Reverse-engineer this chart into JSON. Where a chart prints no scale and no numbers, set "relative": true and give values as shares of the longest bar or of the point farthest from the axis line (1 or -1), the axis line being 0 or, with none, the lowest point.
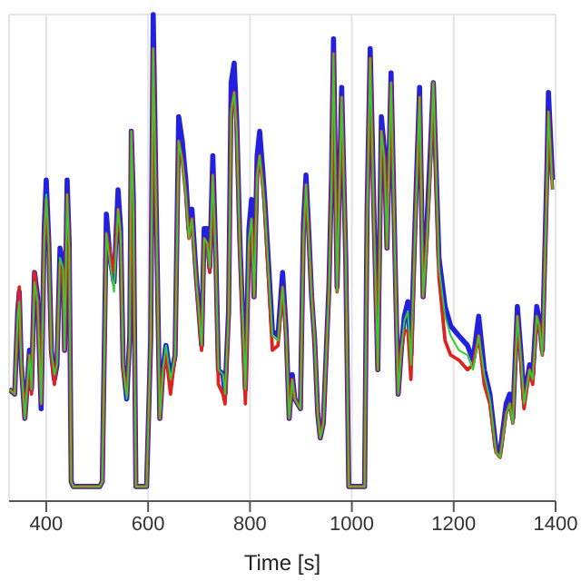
{
  "chart_data": {
    "type": "line",
    "relative": true,
    "xlabel": "Time [s]",
    "xlim": [
      327,
      1400
    ],
    "xticks": [
      400,
      600,
      800,
      1000,
      1200,
      1400
    ],
    "grid": true,
    "legend": false,
    "marker": "none",
    "line_style": "solid",
    "x": [
      327,
      338,
      344,
      347,
      351,
      358,
      364,
      367,
      371,
      377,
      383,
      390,
      396,
      400,
      405,
      410,
      416,
      421,
      427,
      433,
      436,
      441,
      445,
      449,
      453,
      505,
      510,
      518,
      525,
      533,
      541,
      546,
      551,
      558,
      564,
      567,
      571,
      576,
      597,
      605,
      610,
      616,
      623,
      629,
      635,
      644,
      653,
      660,
      667,
      674,
      680,
      686,
      694,
      705,
      710,
      716,
      721,
      727,
      733,
      738,
      747,
      751,
      758,
      763,
      769,
      774,
      780,
      791,
      798,
      803,
      808,
      814,
      819,
      825,
      829,
      844,
      855,
      864,
      871,
      877,
      883,
      888,
      899,
      905,
      910,
      916,
      921,
      927,
      933,
      938,
      944,
      955,
      960,
      964,
      971,
      980,
      988,
      994,
      1025,
      1030,
      1036,
      1044,
      1051,
      1058,
      1064,
      1069,
      1077,
      1086,
      1091,
      1097,
      1103,
      1110,
      1116,
      1124,
      1133,
      1140,
      1147,
      1155,
      1160,
      1171,
      1183,
      1194,
      1210,
      1227,
      1238,
      1249,
      1260,
      1271,
      1283,
      1291,
      1303,
      1310,
      1316,
      1325,
      1333,
      1338,
      1349,
      1355,
      1363,
      1368,
      1374,
      1383,
      1386,
      1394
    ],
    "series": [
      {
        "color": "#2222dd",
        "values": [
          0.23,
          0.22,
          0.39,
          0.43,
          0.28,
          0.17,
          0.26,
          0.31,
          0.23,
          0.47,
          0.42,
          0.19,
          0.56,
          0.66,
          0.53,
          0.31,
          0.25,
          0.28,
          0.52,
          0.49,
          0.31,
          0.66,
          0.53,
          0.04,
          0.03,
          0.03,
          0.04,
          0.59,
          0.5,
          0.45,
          0.64,
          0.56,
          0.28,
          0.21,
          0.34,
          0.76,
          0.62,
          0.03,
          0.03,
          0.33,
          1.0,
          0.6,
          0.17,
          0.27,
          0.32,
          0.25,
          0.3,
          0.79,
          0.74,
          0.66,
          0.56,
          0.6,
          0.47,
          0.32,
          0.56,
          0.56,
          0.48,
          0.71,
          0.5,
          0.27,
          0.26,
          0.22,
          0.39,
          0.86,
          0.9,
          0.78,
          0.54,
          0.23,
          0.56,
          0.62,
          0.42,
          0.71,
          0.76,
          0.68,
          0.62,
          0.35,
          0.34,
          0.47,
          0.35,
          0.17,
          0.26,
          0.21,
          0.19,
          0.57,
          0.67,
          0.54,
          0.42,
          0.33,
          0.18,
          0.13,
          0.16,
          0.44,
          0.66,
          0.95,
          0.44,
          0.85,
          0.5,
          0.03,
          0.03,
          0.6,
          0.93,
          0.57,
          0.27,
          0.79,
          0.72,
          0.52,
          0.88,
          0.44,
          0.22,
          0.31,
          0.38,
          0.41,
          0.3,
          0.57,
          0.85,
          0.42,
          0.56,
          0.74,
          0.86,
          0.5,
          0.4,
          0.36,
          0.34,
          0.32,
          0.29,
          0.38,
          0.27,
          0.22,
          0.11,
          0.1,
          0.2,
          0.22,
          0.17,
          0.4,
          0.29,
          0.21,
          0.28,
          0.26,
          0.4,
          0.37,
          0.31,
          0.68,
          0.84,
          0.66
        ]
      },
      {
        "color": "#dd2222",
        "values": [
          0.23,
          0.22,
          0.38,
          0.44,
          0.28,
          0.17,
          0.25,
          0.3,
          0.22,
          0.47,
          0.41,
          0.2,
          0.54,
          0.62,
          0.52,
          0.3,
          0.24,
          0.29,
          0.49,
          0.47,
          0.31,
          0.63,
          0.52,
          0.04,
          0.03,
          0.03,
          0.04,
          0.55,
          0.51,
          0.47,
          0.6,
          0.54,
          0.27,
          0.22,
          0.33,
          0.76,
          0.59,
          0.03,
          0.03,
          0.33,
          0.93,
          0.58,
          0.17,
          0.26,
          0.3,
          0.22,
          0.3,
          0.74,
          0.7,
          0.63,
          0.54,
          0.58,
          0.46,
          0.31,
          0.54,
          0.53,
          0.47,
          0.67,
          0.49,
          0.24,
          0.22,
          0.2,
          0.38,
          0.8,
          0.84,
          0.76,
          0.53,
          0.2,
          0.52,
          0.58,
          0.42,
          0.67,
          0.71,
          0.65,
          0.6,
          0.31,
          0.32,
          0.44,
          0.34,
          0.17,
          0.25,
          0.21,
          0.19,
          0.54,
          0.65,
          0.53,
          0.42,
          0.33,
          0.18,
          0.13,
          0.16,
          0.43,
          0.64,
          0.92,
          0.43,
          0.83,
          0.5,
          0.03,
          0.03,
          0.58,
          0.91,
          0.55,
          0.27,
          0.76,
          0.7,
          0.52,
          0.86,
          0.44,
          0.22,
          0.31,
          0.35,
          0.35,
          0.25,
          0.55,
          0.83,
          0.42,
          0.53,
          0.71,
          0.86,
          0.46,
          0.33,
          0.3,
          0.29,
          0.27,
          0.28,
          0.34,
          0.24,
          0.2,
          0.1,
          0.09,
          0.18,
          0.2,
          0.16,
          0.38,
          0.27,
          0.19,
          0.27,
          0.24,
          0.38,
          0.36,
          0.3,
          0.65,
          0.8,
          0.64
        ]
      },
      {
        "color": "#33cc33",
        "values": [
          0.23,
          0.22,
          0.38,
          0.41,
          0.28,
          0.17,
          0.26,
          0.3,
          0.23,
          0.45,
          0.41,
          0.2,
          0.53,
          0.63,
          0.52,
          0.31,
          0.26,
          0.28,
          0.5,
          0.48,
          0.31,
          0.63,
          0.52,
          0.04,
          0.03,
          0.03,
          0.04,
          0.55,
          0.49,
          0.43,
          0.6,
          0.55,
          0.28,
          0.21,
          0.33,
          0.76,
          0.6,
          0.03,
          0.03,
          0.33,
          0.93,
          0.58,
          0.17,
          0.27,
          0.32,
          0.25,
          0.3,
          0.74,
          0.7,
          0.63,
          0.54,
          0.58,
          0.46,
          0.32,
          0.54,
          0.53,
          0.48,
          0.67,
          0.49,
          0.27,
          0.26,
          0.22,
          0.38,
          0.8,
          0.84,
          0.76,
          0.53,
          0.23,
          0.54,
          0.58,
          0.42,
          0.67,
          0.71,
          0.65,
          0.6,
          0.34,
          0.33,
          0.44,
          0.34,
          0.17,
          0.25,
          0.21,
          0.19,
          0.54,
          0.65,
          0.53,
          0.42,
          0.33,
          0.18,
          0.13,
          0.16,
          0.43,
          0.64,
          0.92,
          0.43,
          0.83,
          0.5,
          0.03,
          0.03,
          0.58,
          0.91,
          0.55,
          0.27,
          0.76,
          0.7,
          0.52,
          0.86,
          0.44,
          0.22,
          0.31,
          0.37,
          0.39,
          0.28,
          0.55,
          0.83,
          0.42,
          0.53,
          0.71,
          0.86,
          0.48,
          0.38,
          0.34,
          0.31,
          0.3,
          0.27,
          0.34,
          0.26,
          0.21,
          0.1,
          0.09,
          0.18,
          0.2,
          0.16,
          0.38,
          0.28,
          0.2,
          0.27,
          0.25,
          0.38,
          0.36,
          0.3,
          0.65,
          0.8,
          0.64
        ]
      }
    ]
  }
}
